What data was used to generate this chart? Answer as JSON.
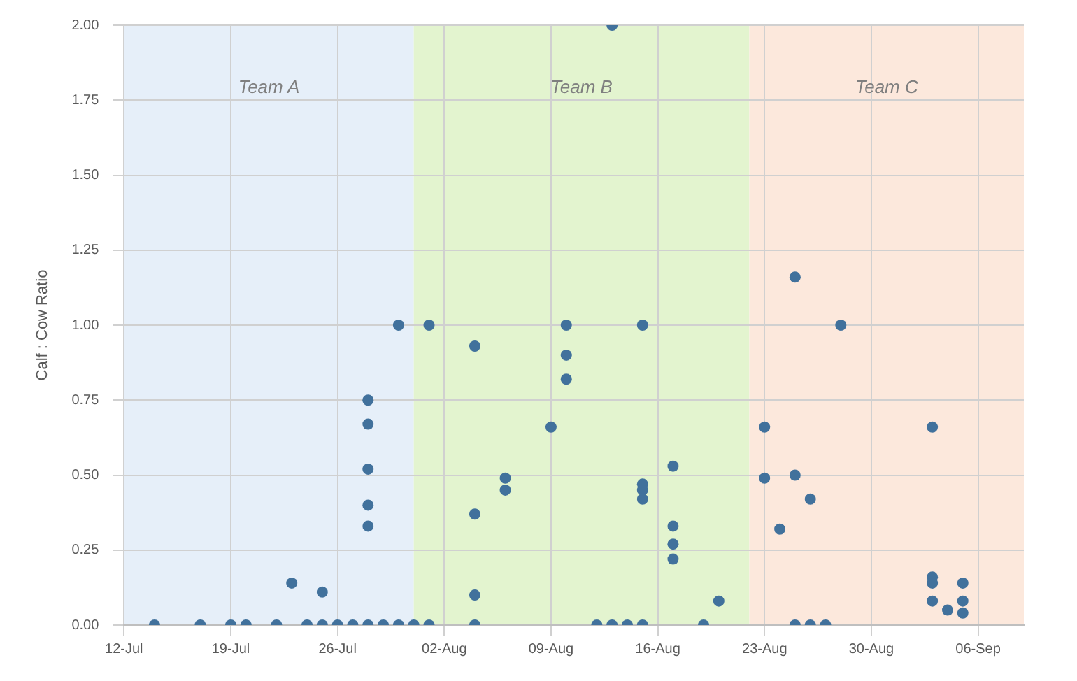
{
  "chart_data": {
    "type": "scatter",
    "ylabel": "Calf : Cow Ratio",
    "x": [
      "--07-14",
      "--07-17",
      "--07-19",
      "--07-20",
      "--07-22",
      "--07-23",
      "--07-24",
      "--07-25",
      "--07-25",
      "--07-26",
      "--07-27",
      "--07-28",
      "--07-28",
      "--07-28",
      "--07-28",
      "--07-28",
      "--07-28",
      "--07-29",
      "--07-30",
      "--07-30",
      "--07-31",
      "--08-01",
      "--08-01",
      "--08-04",
      "--08-04",
      "--08-04",
      "--08-04",
      "--08-06",
      "--08-06",
      "--08-09",
      "--08-10",
      "--08-10",
      "--08-10",
      "--08-12",
      "--08-13",
      "--08-13",
      "--08-14",
      "--08-15",
      "--08-15",
      "--08-15",
      "--08-15",
      "--08-15",
      "--08-17",
      "--08-17",
      "--08-17",
      "--08-17",
      "--08-19",
      "--08-20",
      "--08-23",
      "--08-23",
      "--08-24",
      "--08-25",
      "--08-25",
      "--08-25",
      "--08-26",
      "--08-26",
      "--08-27",
      "--08-28",
      "--09-03",
      "--09-03",
      "--09-03",
      "--09-03",
      "--09-04",
      "--09-05",
      "--09-05",
      "--09-05"
    ],
    "series": [
      {
        "color": "#41719c",
        "values": [
          0,
          0,
          0,
          0,
          0,
          0.14,
          0,
          0.11,
          0,
          0,
          0,
          0.75,
          0.67,
          0.52,
          0.4,
          0.33,
          0,
          0,
          1,
          0,
          0,
          1,
          0,
          0.93,
          0.37,
          0.1,
          0,
          0.49,
          0.45,
          0.66,
          1,
          0.9,
          0.82,
          0,
          2,
          0,
          0,
          1,
          0.47,
          0.45,
          0.42,
          0,
          0.53,
          0.33,
          0.27,
          0.22,
          0,
          0.08,
          0.66,
          0.49,
          0.32,
          1.16,
          0.5,
          0,
          0.42,
          0,
          0,
          1,
          0.66,
          0.16,
          0.14,
          0.08,
          0.05,
          0.14,
          0.08,
          0.04
        ]
      }
    ],
    "xlim": [
      "--07-12",
      "--09-09"
    ],
    "xticks": [
      {
        "value": "--07-12",
        "label": "12-Jul"
      },
      {
        "value": "--07-19",
        "label": "19-Jul"
      },
      {
        "value": "--07-26",
        "label": "26-Jul"
      },
      {
        "value": "--08-02",
        "label": "02-Aug"
      },
      {
        "value": "--08-09",
        "label": "09-Aug"
      },
      {
        "value": "--08-16",
        "label": "16-Aug"
      },
      {
        "value": "--08-23",
        "label": "23-Aug"
      },
      {
        "value": "--08-30",
        "label": "30-Aug"
      },
      {
        "value": "--09-06",
        "label": "06-Sep"
      }
    ],
    "ylim": [
      0,
      2
    ],
    "yticks": [
      {
        "value": 0,
        "label": "0.00"
      },
      {
        "value": 0.25,
        "label": "0.25"
      },
      {
        "value": 0.5,
        "label": "0.50"
      },
      {
        "value": 0.75,
        "label": "0.75"
      },
      {
        "value": 1,
        "label": "1.00"
      },
      {
        "value": 1.25,
        "label": "1.25"
      },
      {
        "value": 1.5,
        "label": "1.50"
      },
      {
        "value": 1.75,
        "label": "1.75"
      },
      {
        "value": 2,
        "label": "2.00"
      }
    ],
    "bands": [
      {
        "axis": "x",
        "from": "--07-12",
        "to": "--07-31",
        "label": "Team A",
        "color": "#e6eff9"
      },
      {
        "axis": "x",
        "from": "--07-31",
        "to": "--08-22",
        "label": "Team B",
        "color": "#e3f4cf"
      },
      {
        "axis": "x",
        "from": "--08-22",
        "to": "--09-09",
        "label": "Team C",
        "color": "#fce8dc"
      }
    ],
    "grid": true,
    "marker": "circle",
    "legend": false
  }
}
